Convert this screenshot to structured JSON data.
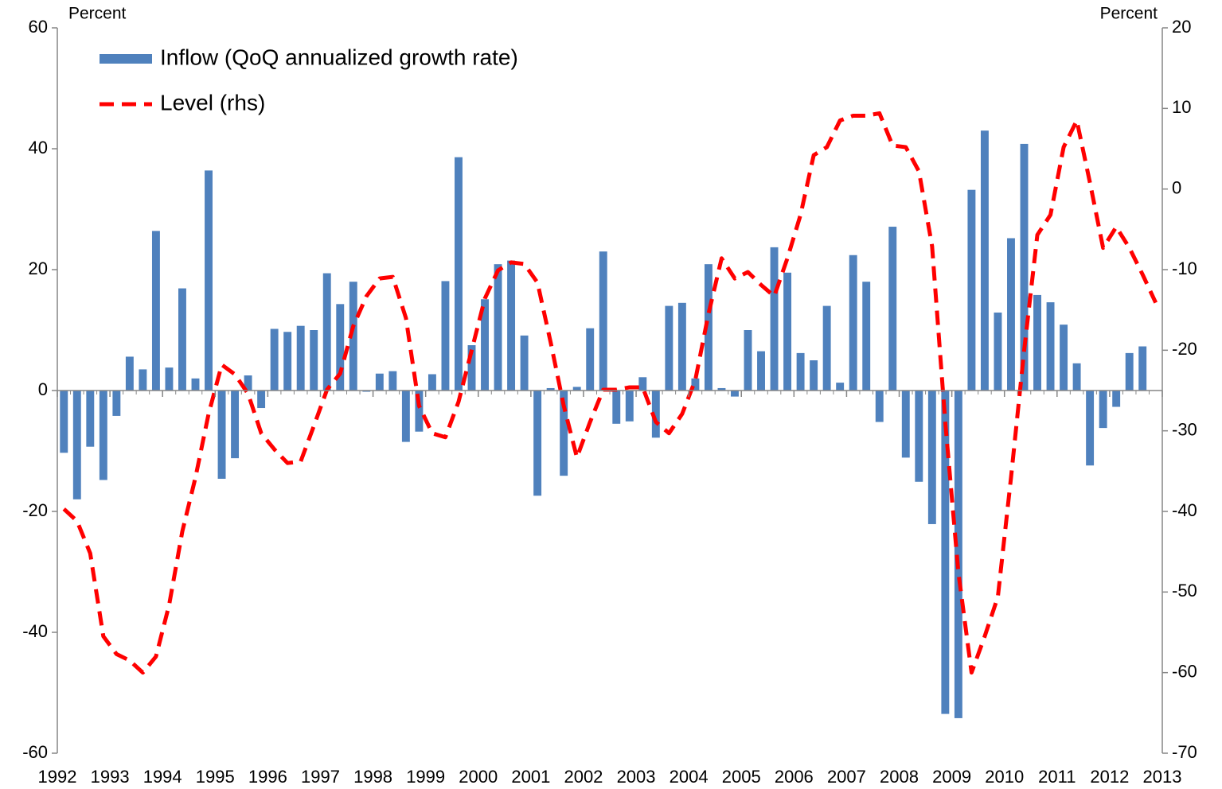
{
  "chart_data": {
    "type": "bar_line",
    "y_label": "Percent",
    "y2_label": "Percent",
    "xlim": [
      1992,
      2013
    ],
    "xticks": [
      1992,
      1993,
      1994,
      1995,
      1996,
      1997,
      1998,
      1999,
      2000,
      2001,
      2002,
      2003,
      2004,
      2005,
      2006,
      2007,
      2008,
      2009,
      2010,
      2011,
      2012,
      2013
    ],
    "ylim": [
      -60,
      60
    ],
    "yticks": [
      -60,
      -40,
      -20,
      0,
      20,
      40,
      60
    ],
    "y2lim": [
      -70,
      20
    ],
    "y2ticks": [
      -70,
      -60,
      -50,
      -40,
      -30,
      -20,
      -10,
      0,
      10,
      20
    ],
    "legend": "top-left",
    "x": [
      1992.125,
      1992.375,
      1992.625,
      1992.875,
      1993.125,
      1993.375,
      1993.625,
      1993.875,
      1994.125,
      1994.375,
      1994.625,
      1994.875,
      1995.125,
      1995.375,
      1995.625,
      1995.875,
      1996.125,
      1996.375,
      1996.625,
      1996.875,
      1997.125,
      1997.375,
      1997.625,
      1997.875,
      1998.125,
      1998.375,
      1998.625,
      1998.875,
      1999.125,
      1999.375,
      1999.625,
      1999.875,
      2000.125,
      2000.375,
      2000.625,
      2000.875,
      2001.125,
      2001.375,
      2001.625,
      2001.875,
      2002.125,
      2002.375,
      2002.625,
      2002.875,
      2003.125,
      2003.375,
      2003.625,
      2003.875,
      2004.125,
      2004.375,
      2004.625,
      2004.875,
      2005.125,
      2005.375,
      2005.625,
      2005.875,
      2006.125,
      2006.375,
      2006.625,
      2006.875,
      2007.125,
      2007.375,
      2007.625,
      2007.875,
      2008.125,
      2008.375,
      2008.625,
      2008.875,
      2009.125,
      2009.375,
      2009.625,
      2009.875,
      2010.125,
      2010.375,
      2010.625,
      2010.875,
      2011.125,
      2011.375,
      2011.625,
      2011.875,
      2012.125,
      2012.375,
      2012.625,
      2012.875
    ],
    "series": [
      {
        "name": "Inflow (QoQ annualized growth rate)",
        "type": "bar",
        "color": "#4f81bd",
        "values": [
          -10.3,
          -18,
          -9.3,
          -14.8,
          -4.2,
          5.6,
          3.5,
          26.4,
          3.8,
          16.9,
          2.0,
          36.4,
          -14.6,
          -11.2,
          2.5,
          -2.9,
          10.2,
          9.7,
          10.7,
          10.0,
          19.4,
          14.3,
          18.0,
          -0.2,
          2.8,
          3.2,
          -8.5,
          -6.8,
          2.7,
          18.1,
          38.6,
          7.5,
          15.1,
          20.9,
          21.5,
          9.1,
          -17.4,
          0.4,
          -14.1,
          0.6,
          10.3,
          23.0,
          -5.5,
          -5.1,
          2.2,
          -7.8,
          14.0,
          14.5,
          2.0,
          20.9,
          0.4,
          -1.0,
          10.0,
          6.5,
          23.7,
          19.5,
          6.2,
          5.0,
          14.0,
          1.3,
          22.4,
          18.0,
          -5.2,
          27.1,
          -11.1,
          -15.1,
          -22.1,
          -53.5,
          -54.2,
          33.2,
          43.0,
          12.9,
          25.2,
          40.8,
          15.8,
          14.6,
          10.9,
          4.5,
          -12.4,
          -6.2,
          -2.7,
          6.2,
          7.3,
          null
        ]
      },
      {
        "name": "Level (rhs)",
        "type": "line",
        "axis": "y2",
        "color": "#ff0000",
        "values": [
          -39.7,
          -41.2,
          -45.2,
          -55.5,
          -57.7,
          -58.5,
          -60,
          -58,
          -51.6,
          -42.5,
          -35.8,
          -27.9,
          -21.8,
          -23,
          -25.4,
          -30.3,
          -32.3,
          -34,
          -33.8,
          -29.4,
          -24.9,
          -22.9,
          -17,
          -13.3,
          -11.1,
          -10.9,
          -16,
          -26.9,
          -30.3,
          -30.8,
          -26.4,
          -20,
          -13.6,
          -10.1,
          -9.1,
          -9.3,
          -11.6,
          -19,
          -26.9,
          -33.3,
          -28.9,
          -24.9,
          -24.9,
          -24.6,
          -24.6,
          -28.9,
          -30.3,
          -27.9,
          -23.7,
          -15.5,
          -8.6,
          -11.1,
          -10.3,
          -11.9,
          -13.3,
          -8.6,
          -3.2,
          4.2,
          5.2,
          8.5,
          9.1,
          9.1,
          9.4,
          5.4,
          5.2,
          2.2,
          -7.1,
          -28.9,
          -47.6,
          -60,
          -55.5,
          -50.6,
          -35.8,
          -20,
          -5.7,
          -3.2,
          5.2,
          8.5,
          0.8,
          -7.3,
          -4.7,
          -7.3,
          -10.6,
          -14.1
        ]
      }
    ]
  }
}
